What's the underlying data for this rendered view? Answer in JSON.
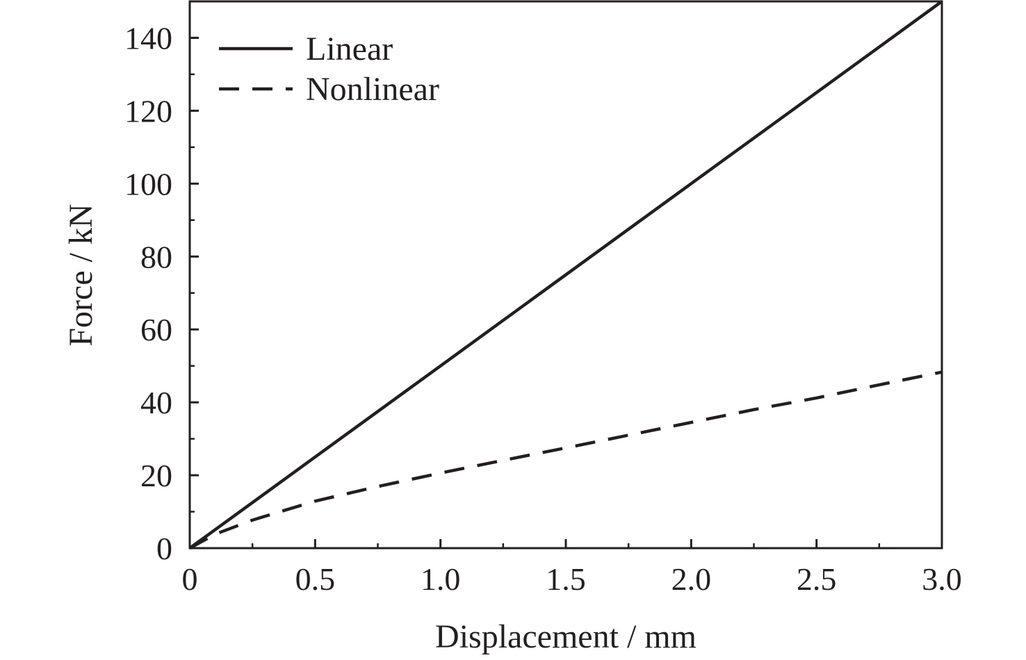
{
  "chart_data": {
    "type": "line",
    "title": "",
    "xlabel": "Displacement / mm",
    "ylabel": "Force / kN",
    "xlim": [
      0,
      3.0
    ],
    "ylim": [
      0,
      150
    ],
    "x_ticks": [
      {
        "value": 0,
        "label": "0"
      },
      {
        "value": 0.5,
        "label": "0.5"
      },
      {
        "value": 1.0,
        "label": "1.0"
      },
      {
        "value": 1.5,
        "label": "1.5"
      },
      {
        "value": 2.0,
        "label": "2.0"
      },
      {
        "value": 2.5,
        "label": "2.5"
      },
      {
        "value": 3.0,
        "label": "3.0"
      }
    ],
    "y_ticks": [
      {
        "value": 0,
        "label": "0"
      },
      {
        "value": 20,
        "label": "20"
      },
      {
        "value": 40,
        "label": "40"
      },
      {
        "value": 60,
        "label": "60"
      },
      {
        "value": 80,
        "label": "80"
      },
      {
        "value": 100,
        "label": "100"
      },
      {
        "value": 120,
        "label": "120"
      },
      {
        "value": 140,
        "label": "140"
      }
    ],
    "x_minor_step": 0.25,
    "y_minor_step": 10,
    "grid": false,
    "legend_position": "top-left",
    "series": [
      {
        "name": "Linear",
        "style": "solid",
        "color": "#231f20",
        "x": [
          0,
          0.5,
          1.0,
          1.5,
          2.0,
          2.5,
          3.0
        ],
        "y": [
          0,
          25,
          50,
          75,
          100,
          125,
          150
        ]
      },
      {
        "name": "Nonlinear",
        "style": "dashed",
        "color": "#231f20",
        "x": [
          0,
          0.1,
          0.25,
          0.5,
          0.75,
          1.0,
          1.25,
          1.5,
          1.75,
          2.0,
          2.25,
          2.5,
          2.75,
          3.0
        ],
        "y": [
          0,
          3.8,
          7.7,
          12.9,
          16.9,
          20.6,
          24.1,
          27.5,
          31.0,
          34.5,
          38.0,
          41.2,
          44.8,
          48.3
        ]
      }
    ]
  }
}
